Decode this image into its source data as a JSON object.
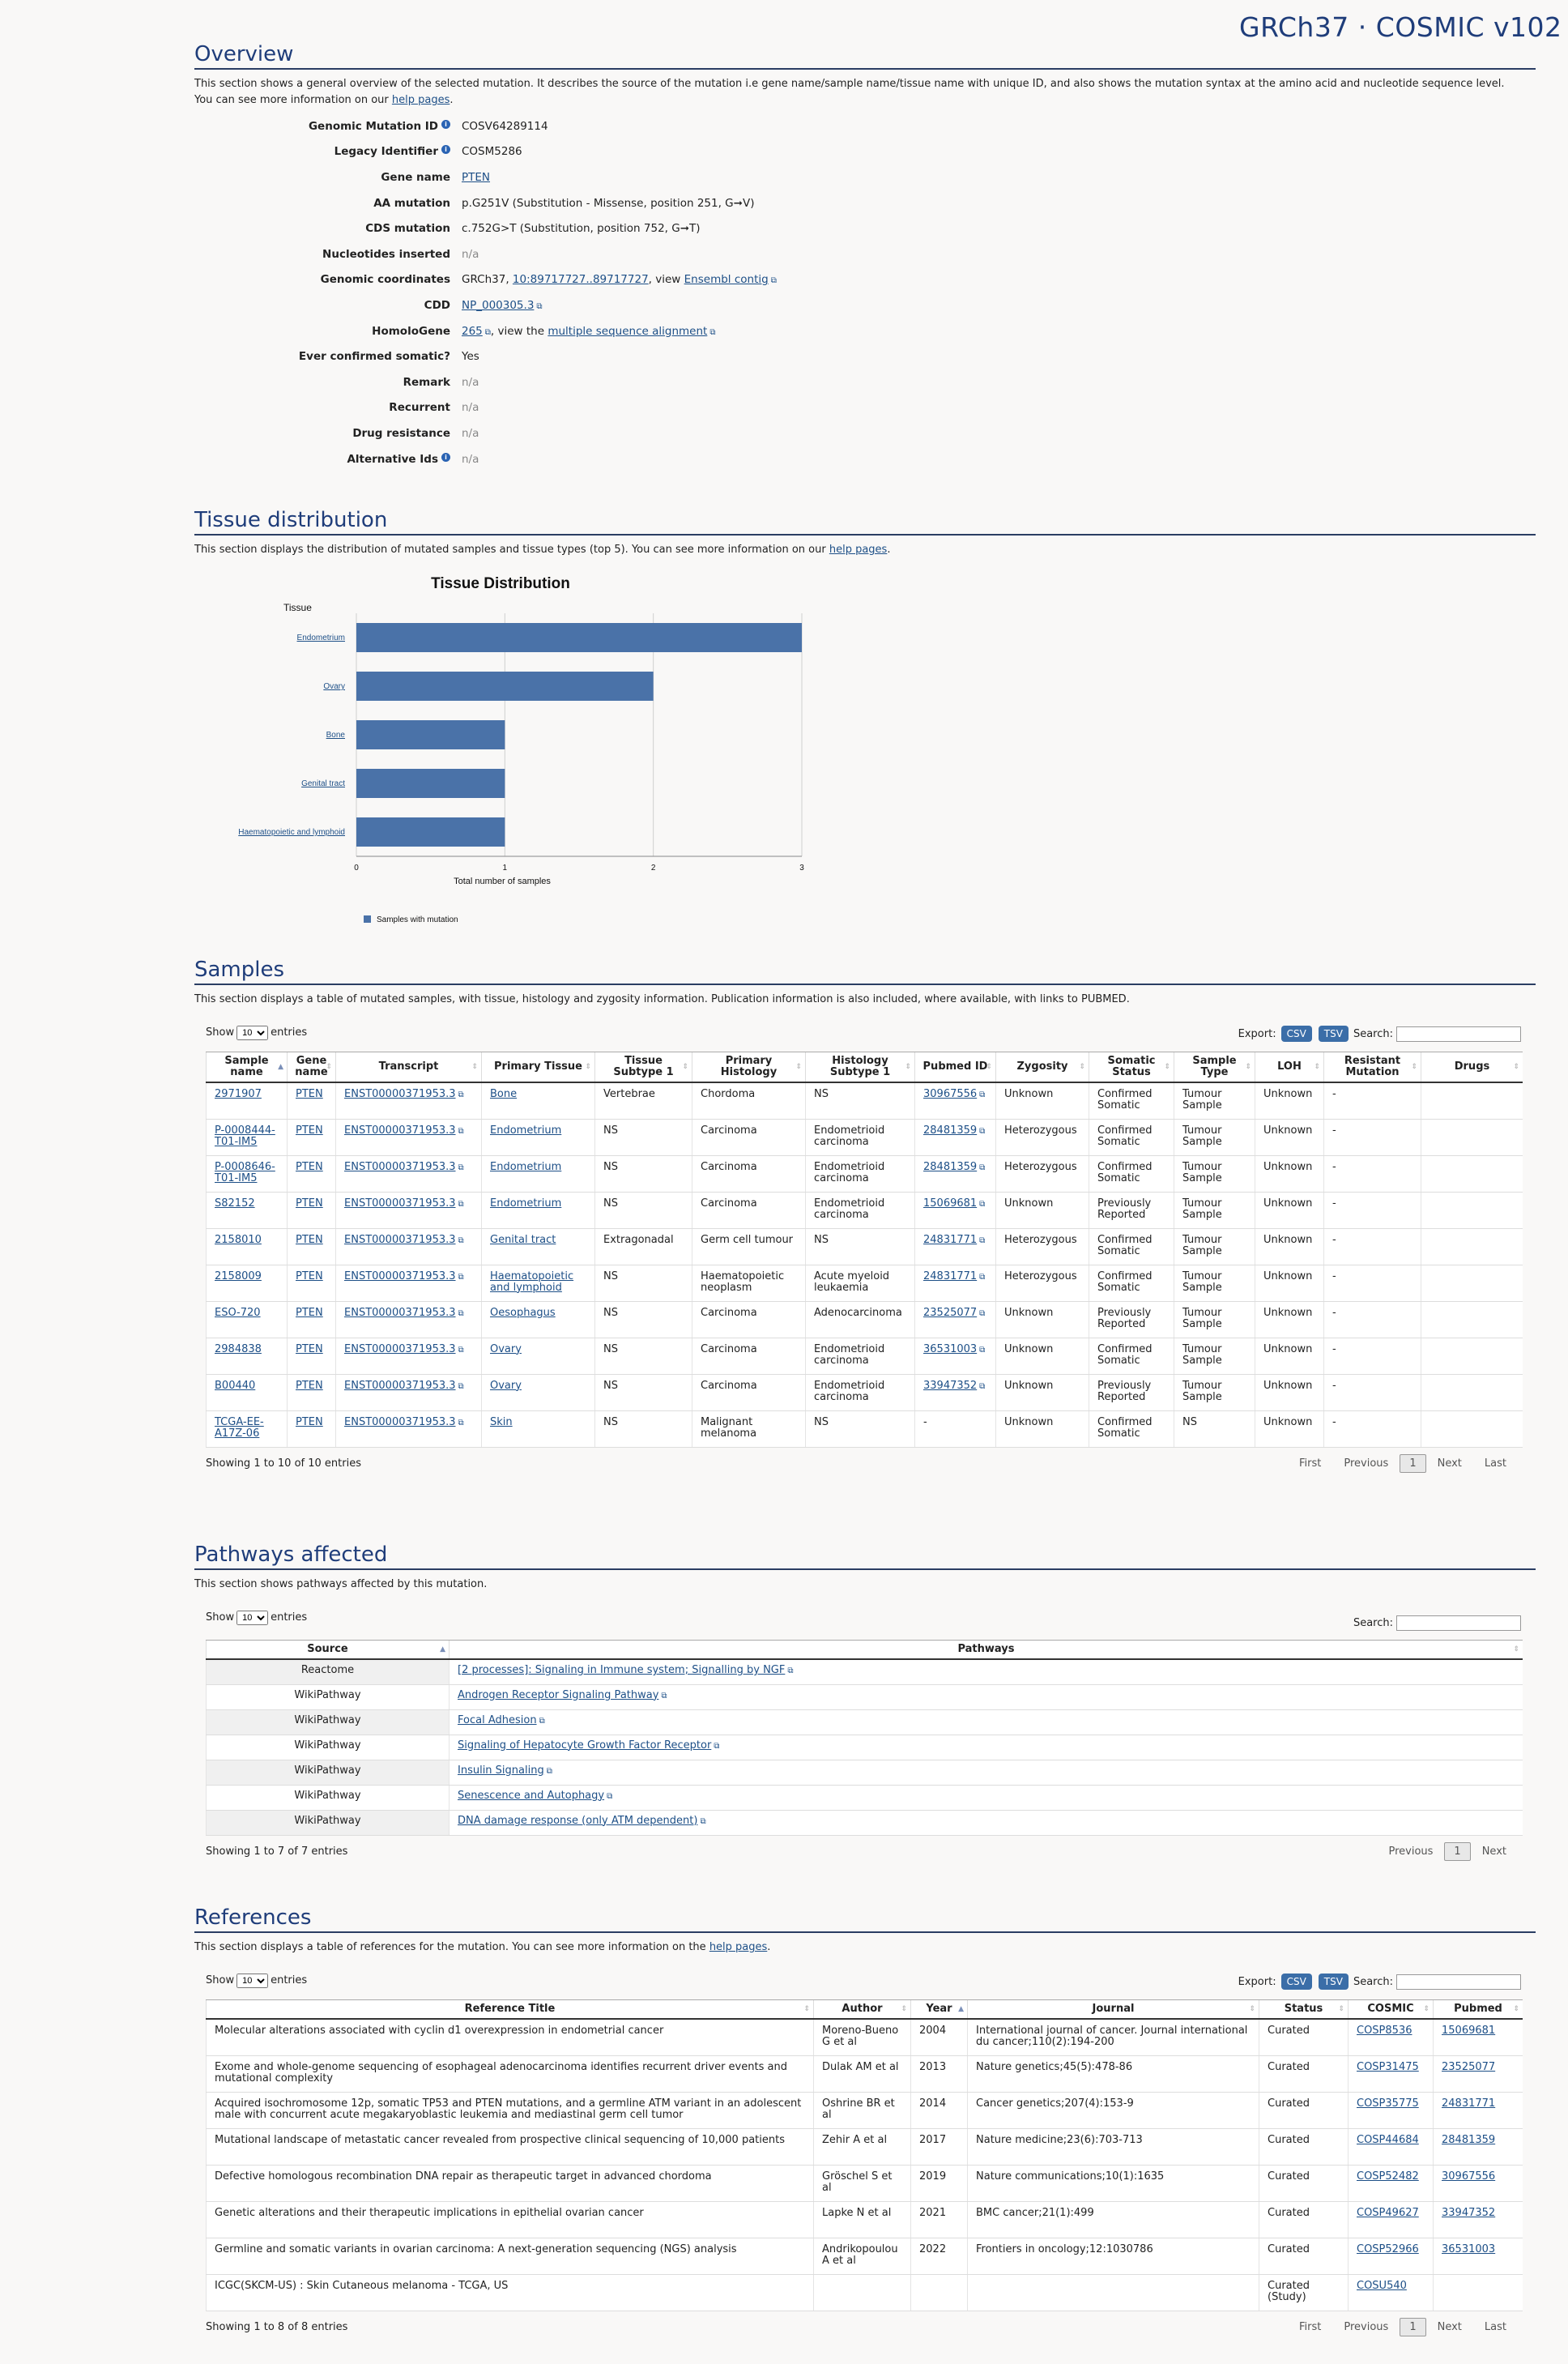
{
  "brand": "GRCh37 · COSMIC v102",
  "overview": {
    "title": "Overview",
    "desc_pre": "This section shows a general overview of the selected mutation. It describes the source of the mutation i.e gene name/sample name/tissue name with unique ID, and also shows the mutation syntax at the amino acid and nucleotide sequence level. You can see more information on our ",
    "desc_link": "help pages",
    "desc_post": ".",
    "genomic_mutation_id_label": "Genomic Mutation ID",
    "genomic_mutation_id": "COSV64289114",
    "legacy_label": "Legacy Identifier",
    "legacy": "COSM5286",
    "gene_label": "Gene name",
    "gene": "PTEN",
    "aa_label": "AA mutation",
    "aa": "p.G251V (Substitution - Missense, position 251, G➞V)",
    "cds_label": "CDS mutation",
    "cds": "c.752G>T (Substitution, position 752, G➞T)",
    "nuc_label": "Nucleotides inserted",
    "nuc": "n/a",
    "coords_label": "Genomic coordinates",
    "coords_pre": "GRCh37, ",
    "coords_link": "10:89717727..89717727",
    "coords_mid": ", view ",
    "coords_link2": "Ensembl contig",
    "cdd_label": "CDD",
    "cdd": "NP_000305.3",
    "homolo_label": "HomoloGene",
    "homolo": "265",
    "homolo_mid": ", view the ",
    "homolo_link2": "multiple sequence alignment",
    "confirmed_label": "Ever confirmed somatic?",
    "confirmed": "Yes",
    "remark_label": "Remark",
    "remark": "n/a",
    "recurrent_label": "Recurrent",
    "recurrent": "n/a",
    "drug_label": "Drug resistance",
    "drug": "n/a",
    "alt_label": "Alternative Ids",
    "alt": "n/a"
  },
  "tissue": {
    "title": "Tissue distribution",
    "desc_pre": "This section displays the distribution of mutated samples and tissue types (top 5). You can see more information on our ",
    "desc_link": "help pages",
    "desc_post": "."
  },
  "chart_data": {
    "type": "bar",
    "orientation": "horizontal",
    "title": "Tissue Distribution",
    "ylabel": "Tissue",
    "xlabel": "Total number of samples",
    "categories": [
      "Endometrium",
      "Ovary",
      "Bone",
      "Genital tract",
      "Haematopoietic and lymphoid"
    ],
    "values": [
      3,
      2,
      1,
      1,
      1
    ],
    "xlim": [
      0,
      3
    ],
    "xticks": [
      "0",
      "1",
      "2",
      "3"
    ],
    "legend": "Samples with mutation",
    "color": "#4a72a8"
  },
  "samples": {
    "title": "Samples",
    "desc": "This section displays a table of mutated samples, with tissue, histology and zygosity information. Publication information is also included, where available, with links to PUBMED.",
    "show": "Show",
    "entries": "entries",
    "page_size": "10",
    "export": "Export:",
    "csv": "CSV",
    "tsv": "TSV",
    "search": "Search:",
    "headers": [
      "Sample name",
      "Gene name",
      "Transcript",
      "Primary Tissue",
      "Tissue Subtype 1",
      "Primary Histology",
      "Histology Subtype 1",
      "Pubmed ID",
      "Zygosity",
      "Somatic Status",
      "Sample Type",
      "LOH",
      "Resistant Mutation",
      "Drugs"
    ],
    "rows": [
      [
        "2971907",
        "PTEN",
        "ENST00000371953.3",
        "Bone",
        "Vertebrae",
        "Chordoma",
        "NS",
        "30967556",
        "Unknown",
        "Confirmed Somatic",
        "Tumour Sample",
        "Unknown",
        "-",
        ""
      ],
      [
        "P-0008444-T01-IM5",
        "PTEN",
        "ENST00000371953.3",
        "Endometrium",
        "NS",
        "Carcinoma",
        "Endometrioid carcinoma",
        "28481359",
        "Heterozygous",
        "Confirmed Somatic",
        "Tumour Sample",
        "Unknown",
        "-",
        ""
      ],
      [
        "P-0008646-T01-IM5",
        "PTEN",
        "ENST00000371953.3",
        "Endometrium",
        "NS",
        "Carcinoma",
        "Endometrioid carcinoma",
        "28481359",
        "Heterozygous",
        "Confirmed Somatic",
        "Tumour Sample",
        "Unknown",
        "-",
        ""
      ],
      [
        "S82152",
        "PTEN",
        "ENST00000371953.3",
        "Endometrium",
        "NS",
        "Carcinoma",
        "Endometrioid carcinoma",
        "15069681",
        "Unknown",
        "Previously Reported",
        "Tumour Sample",
        "Unknown",
        "-",
        ""
      ],
      [
        "2158010",
        "PTEN",
        "ENST00000371953.3",
        "Genital tract",
        "Extragonadal",
        "Germ cell tumour",
        "NS",
        "24831771",
        "Heterozygous",
        "Confirmed Somatic",
        "Tumour Sample",
        "Unknown",
        "-",
        ""
      ],
      [
        "2158009",
        "PTEN",
        "ENST00000371953.3",
        "Haematopoietic and lymphoid",
        "NS",
        "Haematopoietic neoplasm",
        "Acute myeloid leukaemia",
        "24831771",
        "Heterozygous",
        "Confirmed Somatic",
        "Tumour Sample",
        "Unknown",
        "-",
        ""
      ],
      [
        "ESO-720",
        "PTEN",
        "ENST00000371953.3",
        "Oesophagus",
        "NS",
        "Carcinoma",
        "Adenocarcinoma",
        "23525077",
        "Unknown",
        "Previously Reported",
        "Tumour Sample",
        "Unknown",
        "-",
        ""
      ],
      [
        "2984838",
        "PTEN",
        "ENST00000371953.3",
        "Ovary",
        "NS",
        "Carcinoma",
        "Endometrioid carcinoma",
        "36531003",
        "Unknown",
        "Confirmed Somatic",
        "Tumour Sample",
        "Unknown",
        "-",
        ""
      ],
      [
        "B00440",
        "PTEN",
        "ENST00000371953.3",
        "Ovary",
        "NS",
        "Carcinoma",
        "Endometrioid carcinoma",
        "33947352",
        "Unknown",
        "Previously Reported",
        "Tumour Sample",
        "Unknown",
        "-",
        ""
      ],
      [
        "TCGA-EE-A17Z-06",
        "PTEN",
        "ENST00000371953.3",
        "Skin",
        "NS",
        "Malignant melanoma",
        "NS",
        "-",
        "Unknown",
        "Confirmed Somatic",
        "NS",
        "Unknown",
        "-",
        ""
      ]
    ],
    "info": "Showing 1 to 10 of 10 entries",
    "pager": [
      "First",
      "Previous",
      "1",
      "Next",
      "Last"
    ]
  },
  "pathways": {
    "title": "Pathways affected",
    "desc": "This section shows pathways affected by this mutation.",
    "show": "Show",
    "entries": "entries",
    "page_size": "10",
    "search": "Search:",
    "headers": [
      "Source",
      "Pathways"
    ],
    "rows": [
      [
        "Reactome",
        "[2 processes]: Signaling in Immune system; Signalling by NGF"
      ],
      [
        "WikiPathway",
        "Androgen Receptor Signaling Pathway"
      ],
      [
        "WikiPathway",
        "Focal Adhesion"
      ],
      [
        "WikiPathway",
        "Signaling of Hepatocyte Growth Factor Receptor"
      ],
      [
        "WikiPathway",
        "Insulin Signaling"
      ],
      [
        "WikiPathway",
        "Senescence and Autophagy"
      ],
      [
        "WikiPathway",
        "DNA damage response (only ATM dependent)"
      ]
    ],
    "info": "Showing 1 to 7 of 7 entries",
    "pager": [
      "Previous",
      "1",
      "Next"
    ]
  },
  "references": {
    "title": "References",
    "desc_pre": "This section displays a table of references for the mutation. You can see more information on the ",
    "desc_link": "help pages",
    "desc_post": ".",
    "show": "Show",
    "entries": "entries",
    "page_size": "10",
    "export": "Export:",
    "csv": "CSV",
    "tsv": "TSV",
    "search": "Search:",
    "headers": [
      "Reference Title",
      "Author",
      "Year",
      "Journal",
      "Status",
      "COSMIC",
      "Pubmed"
    ],
    "rows": [
      [
        "Molecular alterations associated with cyclin d1 overexpression in endometrial cancer",
        "Moreno-Bueno G et al",
        "2004",
        "International journal of cancer. Journal international du cancer;110(2):194-200",
        "Curated",
        "COSP8536",
        "15069681"
      ],
      [
        "Exome and whole-genome sequencing of esophageal adenocarcinoma identifies recurrent driver events and mutational complexity",
        "Dulak AM et al",
        "2013",
        "Nature genetics;45(5):478-86",
        "Curated",
        "COSP31475",
        "23525077"
      ],
      [
        "Acquired isochromosome 12p, somatic TP53 and PTEN mutations, and a germline ATM variant in an adolescent male with concurrent acute megakaryoblastic leukemia and mediastinal germ cell tumor",
        "Oshrine BR et al",
        "2014",
        "Cancer genetics;207(4):153-9",
        "Curated",
        "COSP35775",
        "24831771"
      ],
      [
        "Mutational landscape of metastatic cancer revealed from prospective clinical sequencing of 10,000 patients",
        "Zehir A et al",
        "2017",
        "Nature medicine;23(6):703-713",
        "Curated",
        "COSP44684",
        "28481359"
      ],
      [
        "Defective homologous recombination DNA repair as therapeutic target in advanced chordoma",
        "Gröschel S et al",
        "2019",
        "Nature communications;10(1):1635",
        "Curated",
        "COSP52482",
        "30967556"
      ],
      [
        "Genetic alterations and their therapeutic implications in epithelial ovarian cancer",
        "Lapke N et al",
        "2021",
        "BMC cancer;21(1):499",
        "Curated",
        "COSP49627",
        "33947352"
      ],
      [
        "Germline and somatic variants in ovarian carcinoma: A next-generation sequencing (NGS) analysis",
        "Andrikopoulou A et al",
        "2022",
        "Frontiers in oncology;12:1030786",
        "Curated",
        "COSP52966",
        "36531003"
      ],
      [
        "ICGC(SKCM-US) : Skin Cutaneous melanoma - TCGA, US",
        "",
        "",
        "",
        "Curated (Study)",
        "COSU540",
        ""
      ]
    ],
    "info": "Showing 1 to 8 of 8 entries",
    "pager": [
      "First",
      "Previous",
      "1",
      "Next",
      "Last"
    ]
  }
}
